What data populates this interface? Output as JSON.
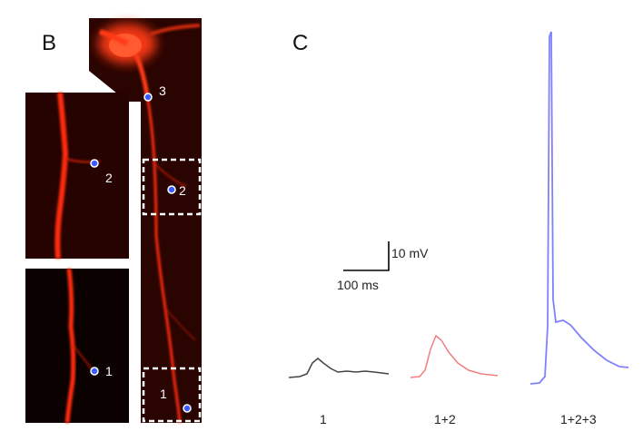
{
  "panels": {
    "b_letter": "B",
    "c_letter": "C"
  },
  "micrographs": {
    "site_labels": [
      "1",
      "2",
      "3"
    ],
    "inset_top_label": "2",
    "inset_bottom_label": "1",
    "main_labels": {
      "three": "3",
      "two": "2",
      "one": "1"
    },
    "colors": {
      "fluorescence": "#ff2a10",
      "background": "#1a0300",
      "marker": "#3a5bff"
    }
  },
  "scalebar": {
    "voltage": "10 mV",
    "time": "100 ms"
  },
  "traces": [
    {
      "label": "1",
      "color": "#444444"
    },
    {
      "label": "1+2",
      "color": "#f08080"
    },
    {
      "label": "1+2+3",
      "color": "#8080ff"
    }
  ]
}
